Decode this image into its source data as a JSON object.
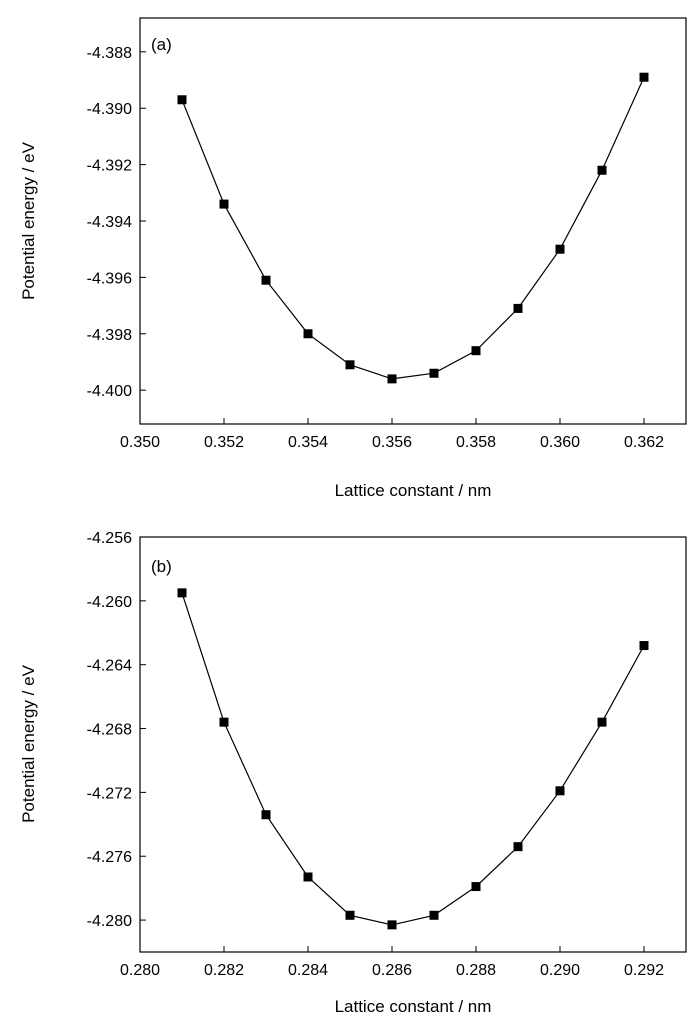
{
  "colors": {
    "line": "#000000",
    "marker": "#000000",
    "axis": "#000000",
    "background": "#ffffff"
  },
  "chart_data": [
    {
      "type": "line",
      "panel_label": "(a)",
      "title": "",
      "xlabel": "Lattice constant / nm",
      "ylabel": "Potential energy / eV",
      "xlim": [
        0.35,
        0.363
      ],
      "ylim": [
        -4.4012,
        -4.3868
      ],
      "xticks": [
        0.35,
        0.352,
        0.354,
        0.356,
        0.358,
        0.36,
        0.362
      ],
      "xtick_labels": [
        "0.350",
        "0.352",
        "0.354",
        "0.356",
        "0.358",
        "0.360",
        "0.362"
      ],
      "yticks": [
        -4.388,
        -4.39,
        -4.392,
        -4.394,
        -4.396,
        -4.398,
        -4.4
      ],
      "ytick_labels": [
        "-4.388",
        "-4.390",
        "-4.392",
        "-4.394",
        "-4.396",
        "-4.398",
        "-4.400"
      ],
      "grid": false,
      "marker": "square",
      "series": [
        {
          "x": [
            0.351,
            0.352,
            0.353,
            0.354,
            0.355,
            0.356,
            0.357,
            0.358,
            0.359,
            0.36,
            0.361,
            0.362
          ],
          "y": [
            -4.3897,
            -4.3934,
            -4.3961,
            -4.398,
            -4.3991,
            -4.3996,
            -4.3994,
            -4.3986,
            -4.3971,
            -4.395,
            -4.3922,
            -4.3889
          ]
        }
      ]
    },
    {
      "type": "line",
      "panel_label": "(b)",
      "title": "",
      "xlabel": "Lattice constant / nm",
      "ylabel": "Potential energy / eV",
      "xlim": [
        0.28,
        0.293
      ],
      "ylim": [
        -4.282,
        -4.256
      ],
      "xticks": [
        0.28,
        0.282,
        0.284,
        0.286,
        0.288,
        0.29,
        0.292
      ],
      "xtick_labels": [
        "0.280",
        "0.282",
        "0.284",
        "0.286",
        "0.288",
        "0.290",
        "0.292"
      ],
      "yticks": [
        -4.256,
        -4.26,
        -4.264,
        -4.268,
        -4.272,
        -4.276,
        -4.28
      ],
      "ytick_labels": [
        "-4.256",
        "-4.260",
        "-4.264",
        "-4.268",
        "-4.272",
        "-4.276",
        "-4.280"
      ],
      "grid": false,
      "marker": "square",
      "series": [
        {
          "x": [
            0.281,
            0.282,
            0.283,
            0.284,
            0.285,
            0.286,
            0.287,
            0.288,
            0.289,
            0.29,
            0.291,
            0.292
          ],
          "y": [
            -4.2595,
            -4.2676,
            -4.2734,
            -4.2773,
            -4.2797,
            -4.2803,
            -4.2797,
            -4.2779,
            -4.2754,
            -4.2719,
            -4.2676,
            -4.2628
          ]
        }
      ]
    }
  ]
}
